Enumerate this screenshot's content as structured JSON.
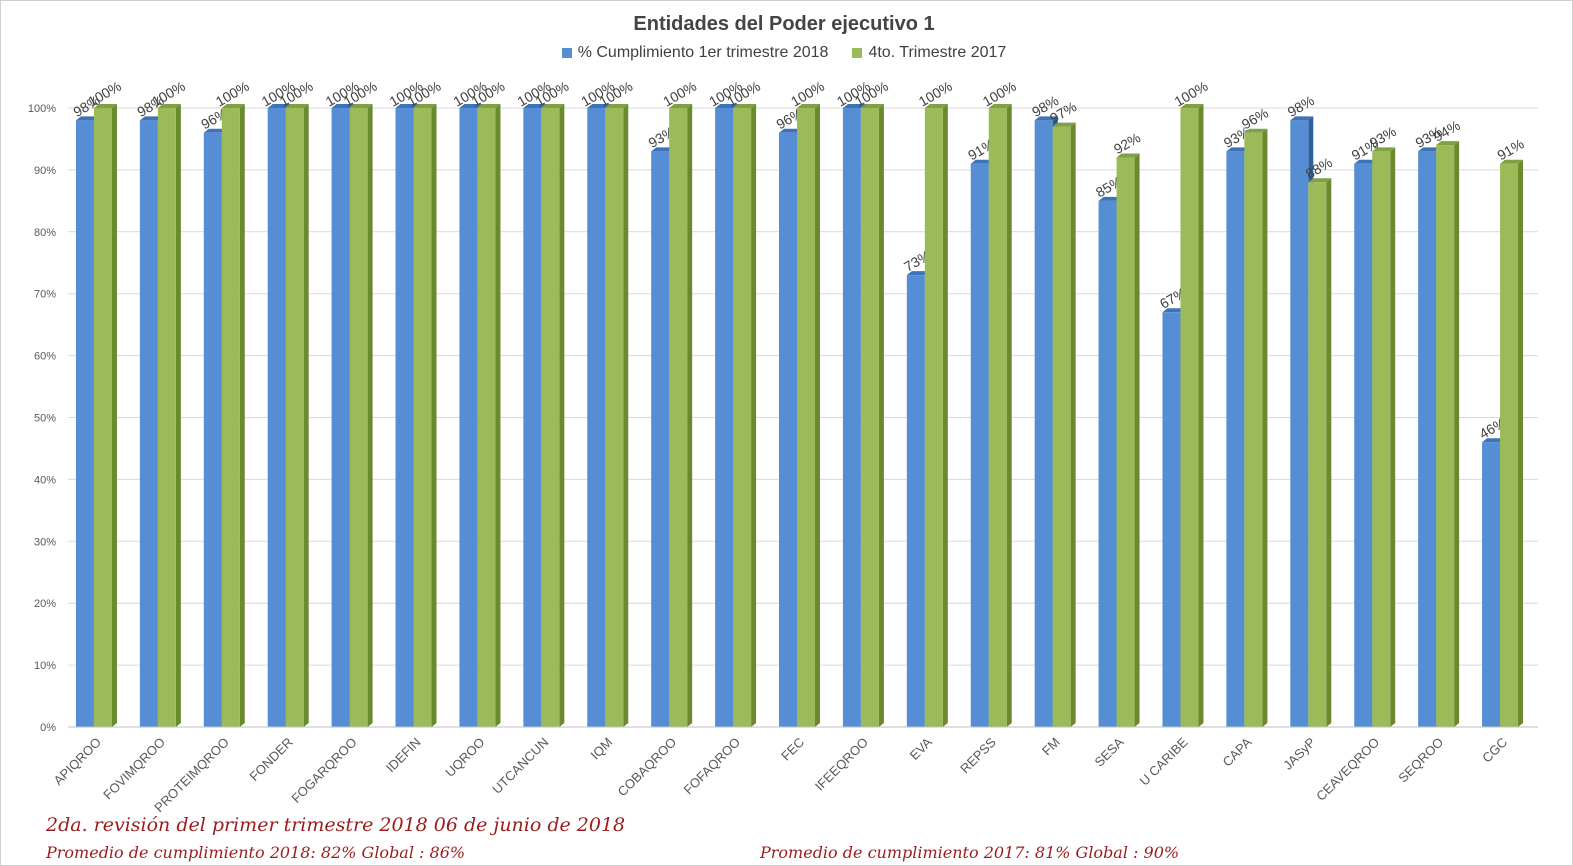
{
  "chart_data": {
    "type": "bar",
    "title": "Entidades del Poder ejecutivo 1",
    "ylim": [
      0,
      100
    ],
    "y_ticks": [
      "0%",
      "10%",
      "20%",
      "30%",
      "40%",
      "50%",
      "60%",
      "70%",
      "80%",
      "90%",
      "100%"
    ],
    "grid": true,
    "legend_position": "top",
    "categories": [
      "APIQROO",
      "FOVIMQROO",
      "PROTEIMQROO",
      "FONDER",
      "FOGARQROO",
      "IDEFIN",
      "UQROO",
      "UTCANCUN",
      "IQM",
      "COBAQROO",
      "FOFAQROO",
      "FEC",
      "IFEEQROO",
      "EVA",
      "REPSS",
      "FM",
      "SESA",
      "U CARIBE",
      "CAPA",
      "JASyP",
      "CEAVEQROO",
      "SEQROO",
      "CGC"
    ],
    "series": [
      {
        "name": "% Cumplimiento 1er trimestre 2018",
        "color": "#558ed5",
        "values": [
          98,
          98,
          96,
          100,
          100,
          100,
          100,
          100,
          100,
          93,
          100,
          96,
          100,
          73,
          91,
          98,
          85,
          67,
          93,
          98,
          91,
          93,
          46
        ],
        "labels": [
          "98%",
          "98%",
          "96%",
          "100%",
          "100%",
          "100%",
          "100%",
          "100%",
          "100%",
          "93%",
          "100%",
          "96%",
          "100%",
          "73%",
          "91%",
          "98%",
          "85%",
          "67%",
          "93%",
          "98%",
          "91%",
          "93%",
          "46%"
        ]
      },
      {
        "name": "4to. Trimestre 2017",
        "color": "#9bbb59",
        "values": [
          100,
          100,
          100,
          100,
          100,
          100,
          100,
          100,
          100,
          100,
          100,
          100,
          100,
          100,
          100,
          97,
          92,
          100,
          96,
          88,
          93,
          94,
          91
        ],
        "labels": [
          "100%",
          "100%",
          "100%",
          "100%",
          "100%",
          "100%",
          "100%",
          "100%",
          "100%",
          "100%",
          "100%",
          "100%",
          "100%",
          "100%",
          "100%",
          "97%",
          "92%",
          "100%",
          "96%",
          "88%",
          "93%",
          "94%",
          "91%"
        ]
      }
    ]
  },
  "notes": {
    "revision": "2da. revisión del primer trimestre 2018    06 de junio de 2018",
    "avg_2018": "Promedio de cumplimiento 2018: 82%     Global : 86%",
    "avg_2017": "Promedio de cumplimiento 2017: 81%     Global : 90%"
  }
}
